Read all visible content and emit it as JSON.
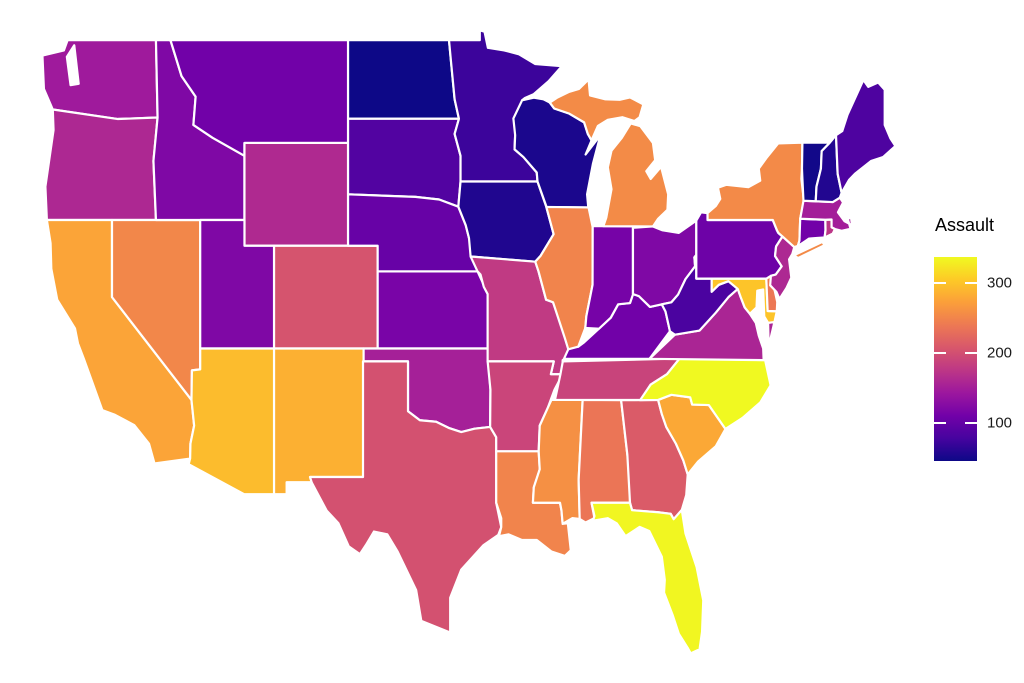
{
  "legend": {
    "title": "Assault",
    "ticks": [
      {
        "value": 300,
        "label": "300"
      },
      {
        "value": 200,
        "label": "200"
      },
      {
        "value": 100,
        "label": "100"
      }
    ],
    "domain_min": 45,
    "domain_max": 337,
    "tick_color": "#ffffff",
    "text_color": "#1a1a1a",
    "gradient_stops": [
      "#0d0887",
      "#46039f",
      "#7201a8",
      "#9c179e",
      "#bd3786",
      "#d8576b",
      "#ed7953",
      "#fb9f3a",
      "#fdca26",
      "#f0f921"
    ]
  },
  "map": {
    "border_color": "#ffffff",
    "background_color": "#ffffff"
  },
  "chart_data": {
    "type": "choropleth",
    "variable": "Assault",
    "region_level": "US state",
    "palette": "plasma",
    "domain": [
      45,
      337
    ],
    "states": {
      "WA": {
        "name": "Washington",
        "value": 145,
        "color": "#9f1a9c"
      },
      "OR": {
        "name": "Oregon",
        "value": 159,
        "color": "#ad2892"
      },
      "CA": {
        "name": "California",
        "value": 276,
        "color": "#fba438"
      },
      "NV": {
        "name": "Nevada",
        "value": 252,
        "color": "#f2874a"
      },
      "ID": {
        "name": "Idaho",
        "value": 120,
        "color": "#7f08a5"
      },
      "MT": {
        "name": "Montana",
        "value": 109,
        "color": "#7101a8"
      },
      "WY": {
        "name": "Wyoming",
        "value": 161,
        "color": "#af2990"
      },
      "UT": {
        "name": "Utah",
        "value": 120,
        "color": "#7f08a5"
      },
      "CO": {
        "name": "Colorado",
        "value": 204,
        "color": "#d5546e"
      },
      "AZ": {
        "name": "Arizona",
        "value": 294,
        "color": "#fcbc2d"
      },
      "NM": {
        "name": "New Mexico",
        "value": 285,
        "color": "#fcb032"
      },
      "ND": {
        "name": "North Dakota",
        "value": 45,
        "color": "#0d0887"
      },
      "SD": {
        "name": "South Dakota",
        "value": 86,
        "color": "#5203a1"
      },
      "NE": {
        "name": "Nebraska",
        "value": 102,
        "color": "#6702a6"
      },
      "KS": {
        "name": "Kansas",
        "value": 115,
        "color": "#7904a7"
      },
      "OK": {
        "name": "Oklahoma",
        "value": 151,
        "color": "#a52098"
      },
      "TX": {
        "name": "Texas",
        "value": 201,
        "color": "#d35170"
      },
      "MN": {
        "name": "Minnesota",
        "value": 72,
        "color": "#3c049b"
      },
      "IA": {
        "name": "Iowa",
        "value": 56,
        "color": "#20068f"
      },
      "MO": {
        "name": "Missouri",
        "value": 178,
        "color": "#c03a83"
      },
      "AR": {
        "name": "Arkansas",
        "value": 190,
        "color": "#ca457a"
      },
      "LA": {
        "name": "Louisiana",
        "value": 249,
        "color": "#f1844c"
      },
      "MS": {
        "name": "Mississippi",
        "value": 259,
        "color": "#f59044"
      },
      "AL": {
        "name": "Alabama",
        "value": 236,
        "color": "#eb7556"
      },
      "GA": {
        "name": "Georgia",
        "value": 211,
        "color": "#da5b68"
      },
      "FL": {
        "name": "Florida",
        "value": 335,
        "color": "#f1f621"
      },
      "TN": {
        "name": "Tennessee",
        "value": 188,
        "color": "#c8447b"
      },
      "KY": {
        "name": "Kentucky",
        "value": 109,
        "color": "#7101a8"
      },
      "WI": {
        "name": "Wisconsin",
        "value": 53,
        "color": "#1b078d"
      },
      "IL": {
        "name": "Illinois",
        "value": 249,
        "color": "#f1844c"
      },
      "IN": {
        "name": "Indiana",
        "value": 113,
        "color": "#7603a7"
      },
      "MI": {
        "name": "Michigan",
        "value": 255,
        "color": "#f38b47"
      },
      "OH": {
        "name": "Ohio",
        "value": 120,
        "color": "#7f08a5"
      },
      "SC": {
        "name": "South Carolina",
        "value": 279,
        "color": "#fba836"
      },
      "NC": {
        "name": "North Carolina",
        "value": 337,
        "color": "#f0f921"
      },
      "VA": {
        "name": "Virginia",
        "value": 156,
        "color": "#aa2594"
      },
      "WV": {
        "name": "West Virginia",
        "value": 81,
        "color": "#4b03a0"
      },
      "MD": {
        "name": "Maryland",
        "value": 300,
        "color": "#fdc429"
      },
      "DE": {
        "name": "Delaware",
        "value": 238,
        "color": "#ec7754"
      },
      "PA": {
        "name": "Pennsylvania",
        "value": 106,
        "color": "#6d02a7"
      },
      "NJ": {
        "name": "New Jersey",
        "value": 159,
        "color": "#ad2892"
      },
      "NY": {
        "name": "New York",
        "value": 254,
        "color": "#f38a48"
      },
      "CT": {
        "name": "Connecticut",
        "value": 110,
        "color": "#7201a8"
      },
      "RI": {
        "name": "Rhode Island",
        "value": 174,
        "color": "#bc3687"
      },
      "MA": {
        "name": "Massachusetts",
        "value": 149,
        "color": "#a31e99"
      },
      "VT": {
        "name": "Vermont",
        "value": 48,
        "color": "#120889"
      },
      "NH": {
        "name": "New Hampshire",
        "value": 57,
        "color": "#220690"
      },
      "ME": {
        "name": "Maine",
        "value": 83,
        "color": "#4e03a0"
      }
    }
  }
}
